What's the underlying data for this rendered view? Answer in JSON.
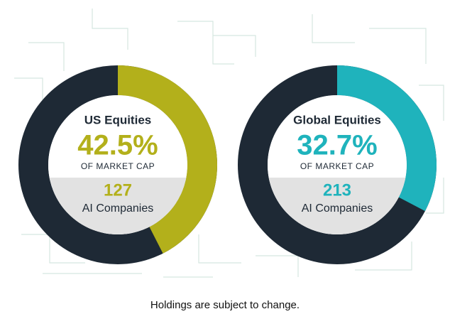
{
  "chart_data": [
    {
      "type": "donut",
      "title": "US Equities",
      "values": [
        42.5
      ],
      "value_labels": [
        "42.5%"
      ],
      "caption": "OF MARKET CAP",
      "count": 127,
      "count_label": "AI Companies",
      "color": "#b3b01b",
      "ring_color": "#1e2935"
    },
    {
      "type": "donut",
      "title": "Global Equities",
      "values": [
        32.7
      ],
      "value_labels": [
        "32.7%"
      ],
      "caption": "OF MARKET CAP",
      "count": 213,
      "count_label": "AI Companies",
      "color": "#1fb3bc",
      "ring_color": "#1e2935"
    }
  ],
  "footnote": "Holdings are subject to change."
}
